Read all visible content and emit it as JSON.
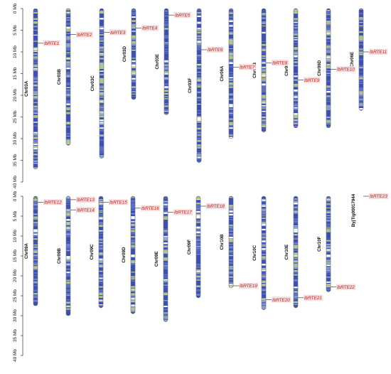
{
  "chart_data": {
    "type": "chromosome-map",
    "axis": {
      "unit": "Mb",
      "top_panel_ticks": [
        0,
        5,
        10,
        15,
        20,
        25,
        30,
        35,
        40
      ],
      "bottom_panel_ticks": [
        0,
        5,
        10,
        15,
        20,
        25,
        30,
        35,
        40
      ],
      "tick_suffix": " Mb"
    },
    "colors": {
      "chromosome_dark": "#3a50b8",
      "chromosome_light": "#b9c78e",
      "gene_label": "#c0271f",
      "gene_label_bg": "#f4dcdc"
    },
    "chromosomes": [
      {
        "name": "Chr03A",
        "panel": "top",
        "length_mb": 37.0
      },
      {
        "name": "Chr03B",
        "panel": "top",
        "length_mb": 31.5
      },
      {
        "name": "Chr03C",
        "panel": "top",
        "length_mb": 34.5
      },
      {
        "name": "Chr03D",
        "panel": "top",
        "length_mb": 21.0
      },
      {
        "name": "Chr03E",
        "panel": "top",
        "length_mb": 24.5
      },
      {
        "name": "Chr03F",
        "panel": "top",
        "length_mb": 35.5
      },
      {
        "name": "Chr06A",
        "panel": "top",
        "length_mb": 30.0
      },
      {
        "name": "Chr06B",
        "panel": "top",
        "length_mb": 28.5
      },
      {
        "name": "Chr06C",
        "panel": "top",
        "length_mb": 27.5
      },
      {
        "name": "Chr06D",
        "panel": "top",
        "length_mb": 27.5
      },
      {
        "name": "Chr06E",
        "panel": "top",
        "length_mb": 23.5
      },
      {
        "name": "Chr09A",
        "panel": "bottom",
        "length_mb": 27.5
      },
      {
        "name": "Chr09B",
        "panel": "bottom",
        "length_mb": 30.0
      },
      {
        "name": "Chr09C",
        "panel": "bottom",
        "length_mb": 28.0
      },
      {
        "name": "Chr09D",
        "panel": "bottom",
        "length_mb": 29.5
      },
      {
        "name": "Chr09E",
        "panel": "bottom",
        "length_mb": 31.5
      },
      {
        "name": "Chr09F",
        "panel": "bottom",
        "length_mb": 25.5
      },
      {
        "name": "Chr10B",
        "panel": "bottom",
        "length_mb": 23.0
      },
      {
        "name": "Chr10C",
        "panel": "bottom",
        "length_mb": 28.5
      },
      {
        "name": "Chr10E",
        "panel": "bottom",
        "length_mb": 28.0
      },
      {
        "name": "Chr10F",
        "panel": "bottom",
        "length_mb": 24.0
      },
      {
        "name": "ByjTig00017944",
        "panel": "bottom",
        "length_mb": 0.0,
        "unplaced": true
      }
    ],
    "genes": [
      {
        "name": "IbRTE1",
        "chromosome": "Chr03A",
        "position_mb": 8.0
      },
      {
        "name": "IbRTE2",
        "chromosome": "Chr03B",
        "position_mb": 6.0
      },
      {
        "name": "IbRTE3",
        "chromosome": "Chr03C",
        "position_mb": 5.5
      },
      {
        "name": "IbRTE4",
        "chromosome": "Chr03D",
        "position_mb": 4.5
      },
      {
        "name": "IbRTE5",
        "chromosome": "Chr03E",
        "position_mb": 1.5
      },
      {
        "name": "IbRTE6",
        "chromosome": "Chr03F",
        "position_mb": 9.5
      },
      {
        "name": "IbRTE7",
        "chromosome": "Chr06A",
        "position_mb": 13.5
      },
      {
        "name": "IbRTE8",
        "chromosome": "Chr06B",
        "position_mb": 12.5
      },
      {
        "name": "IbRTE9",
        "chromosome": "Chr06C",
        "position_mb": 16.5
      },
      {
        "name": "IbRTE10",
        "chromosome": "Chr06D",
        "position_mb": 14.0
      },
      {
        "name": "IbRTE11",
        "chromosome": "Chr06E",
        "position_mb": 10.0
      },
      {
        "name": "IbRTE12",
        "chromosome": "Chr09A",
        "position_mb": 1.5
      },
      {
        "name": "IbRTE13",
        "chromosome": "Chr09B",
        "position_mb": 1.5
      },
      {
        "name": "IbRTE14",
        "chromosome": "Chr09B",
        "position_mb": 2.8
      },
      {
        "name": "IbRTE15",
        "chromosome": "Chr09C",
        "position_mb": 1.5
      },
      {
        "name": "IbRTE16",
        "chromosome": "Chr09D",
        "position_mb": 3.0
      },
      {
        "name": "IbRTE17",
        "chromosome": "Chr09E",
        "position_mb": 4.0
      },
      {
        "name": "IbRTE18",
        "chromosome": "Chr09F",
        "position_mb": 2.5
      },
      {
        "name": "IbRTE19",
        "chromosome": "Chr10B",
        "position_mb": 22.5
      },
      {
        "name": "IbRTE20",
        "chromosome": "Chr10C",
        "position_mb": 26.0
      },
      {
        "name": "IbRTE21",
        "chromosome": "Chr10E",
        "position_mb": 25.5
      },
      {
        "name": "IbRTE22",
        "chromosome": "Chr10F",
        "position_mb": 22.8
      },
      {
        "name": "IbRTE23",
        "chromosome": "ByjTig00017944",
        "position_mb": 0.0
      }
    ]
  }
}
